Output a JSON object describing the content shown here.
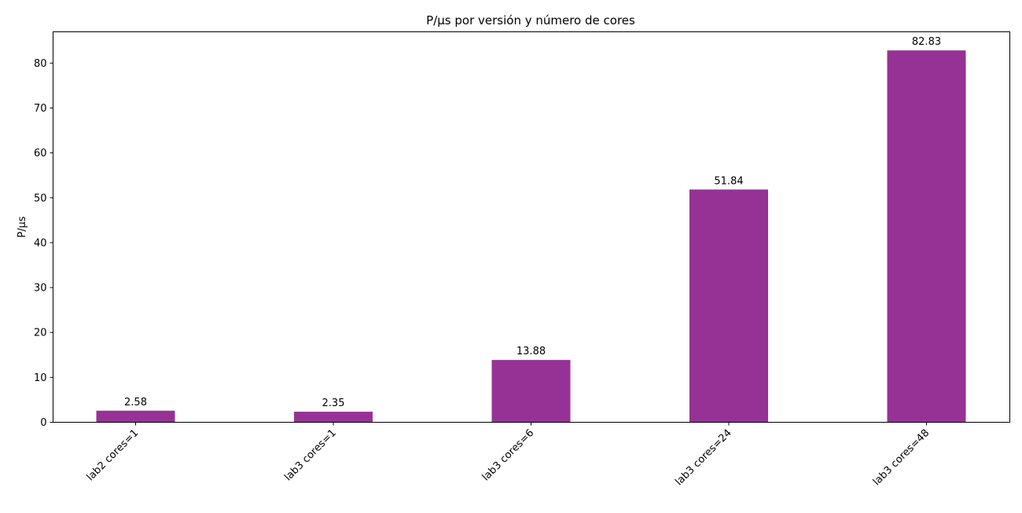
{
  "chart_data": {
    "type": "bar",
    "title": "P/µs por versión y número de cores",
    "xlabel": "",
    "ylabel": "P/µs",
    "categories": [
      "lab2 cores=1",
      "lab3 cores=1",
      "lab3 cores=6",
      "lab3 cores=24",
      "lab3 cores=48"
    ],
    "values": [
      2.58,
      2.35,
      13.88,
      51.84,
      82.83
    ],
    "value_labels": [
      "2.58",
      "2.35",
      "13.88",
      "51.84",
      "82.83"
    ],
    "ylim": [
      0,
      86.97
    ],
    "yticks": [
      0,
      10,
      20,
      30,
      40,
      50,
      60,
      70,
      80
    ],
    "bar_color": "#963296",
    "grid": false,
    "legend": "none"
  }
}
